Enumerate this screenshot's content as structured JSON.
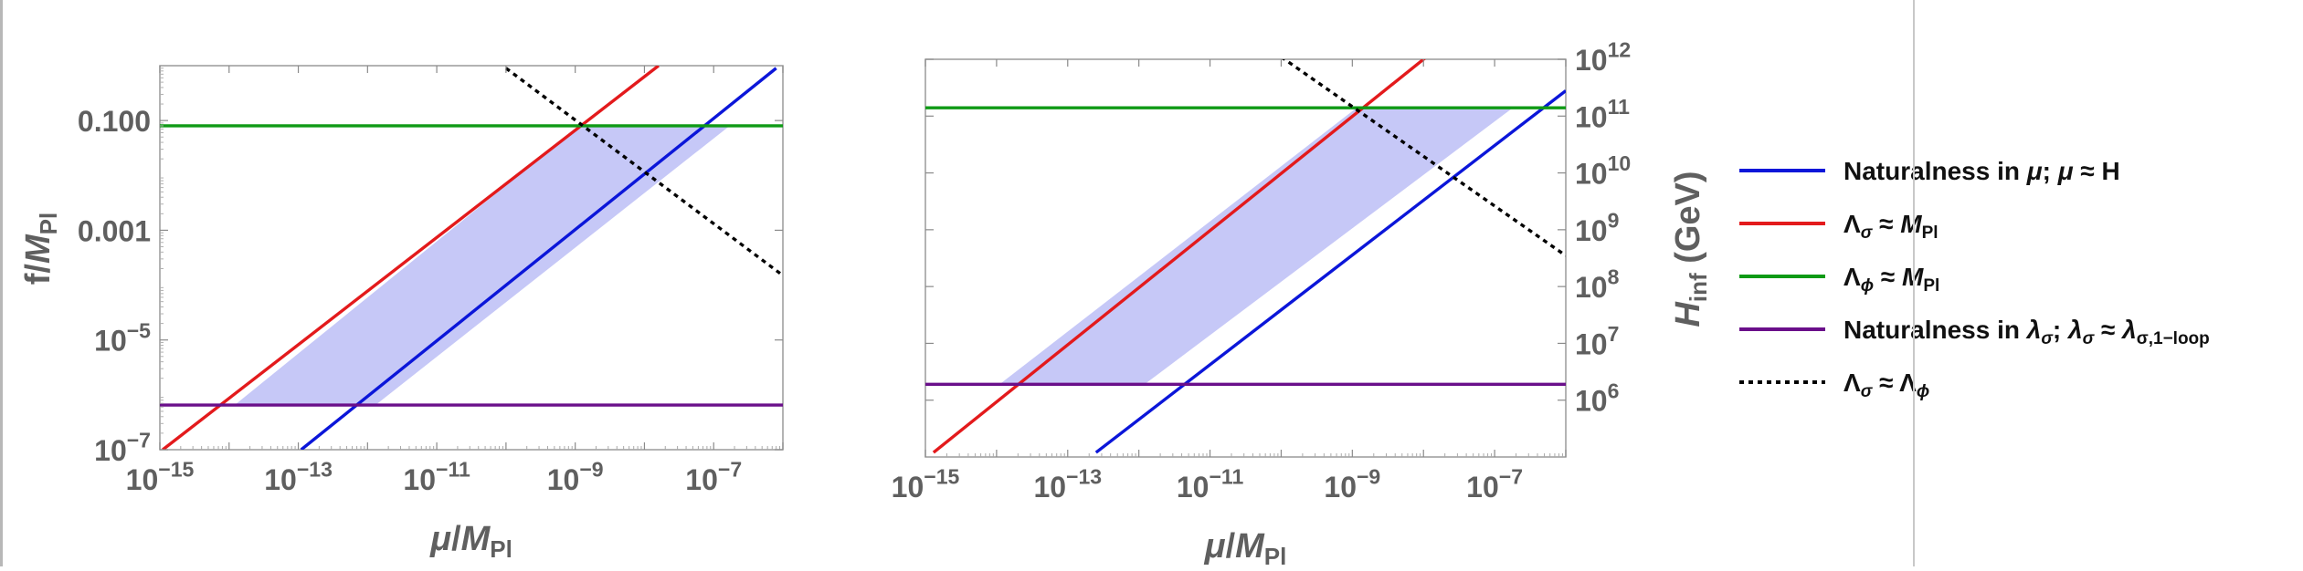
{
  "colors": {
    "blue": "#0b16d9",
    "red": "#e31a1c",
    "green": "#0f9a15",
    "purple": "#6a0f8a",
    "black": "#000000",
    "band": "#c6c8f7",
    "tick_text": "#5f5f5f"
  },
  "legend": {
    "items": [
      {
        "label": "Naturalness in μ; μ ≈ H",
        "color": "#0b16d9",
        "style": "solid"
      },
      {
        "label": "Λσ ≈ MPl",
        "color": "#e31a1c",
        "style": "solid"
      },
      {
        "label": "Λϕ ≈ MPl",
        "color": "#0f9a15",
        "style": "solid"
      },
      {
        "label": "Naturalness in λσ; λσ ≈ λσ,1−loop",
        "color": "#6a0f8a",
        "style": "solid"
      },
      {
        "label": "Λσ ≈ Λϕ",
        "color": "#000000",
        "style": "dotted"
      }
    ]
  },
  "chart_data": [
    {
      "type": "line",
      "xlabel": "μ/MPl",
      "ylabel": "f/MPl",
      "x_scale": "log",
      "y_scale": "log",
      "xlim": [
        1e-15,
        1e-06
      ],
      "ylim": [
        1e-07,
        1
      ],
      "x_ticks": [
        "10−15",
        "10−13",
        "10−11",
        "10−9",
        "10−7"
      ],
      "y_ticks": [
        "10−7",
        "10−5",
        "0.001",
        "0.100"
      ],
      "series": [
        {
          "color_key": "blue",
          "style": "solid",
          "x": [
            1.1e-13,
            8e-07
          ],
          "y": [
            1e-07,
            0.9
          ]
        },
        {
          "color_key": "red",
          "style": "solid",
          "x": [
            1.1e-15,
            1.6e-08
          ],
          "y": [
            1e-07,
            1.0
          ]
        },
        {
          "color_key": "green",
          "style": "solid",
          "x": [
            1e-15,
            1e-06
          ],
          "y": [
            0.08,
            0.08
          ]
        },
        {
          "color_key": "purple",
          "style": "solid",
          "x": [
            1e-15,
            1e-06
          ],
          "y": [
            6.5e-07,
            6.5e-07
          ]
        },
        {
          "color_key": "black",
          "style": "dotted",
          "x": [
            1e-10,
            1e-06
          ],
          "y": [
            0.9,
            0.00015
          ]
        }
      ],
      "shaded_region": {
        "color_key": "band",
        "x": [
          1.2e-14,
          1.15e-09,
          1.7e-07,
          1.3e-12
        ],
        "y": [
          6.5e-07,
          0.08,
          0.08,
          6.5e-07
        ]
      }
    },
    {
      "type": "line",
      "xlabel": "μ/MPl",
      "ylabel": "Hinf (GeV)",
      "x_scale": "log",
      "y_scale": "log",
      "xlim": [
        1e-15,
        1e-06
      ],
      "ylim": [
        100000.0,
        1000000000000.0
      ],
      "x_ticks": [
        "10−15",
        "10−13",
        "10−11",
        "10−9",
        "10−7"
      ],
      "y_ticks": [
        "106",
        "107",
        "108",
        "109",
        "1010",
        "1011",
        "1012"
      ],
      "series": [
        {
          "color_key": "blue",
          "style": "solid",
          "x": [
            2.5e-13,
            1e-06
          ],
          "y": [
            120000.0,
            280000000000.0
          ]
        },
        {
          "color_key": "red",
          "style": "solid",
          "x": [
            1.3e-15,
            1.2e-08
          ],
          "y": [
            120000.0,
            1200000000000.0
          ]
        },
        {
          "color_key": "green",
          "style": "solid",
          "x": [
            1e-15,
            1e-06
          ],
          "y": [
            140000000000.0,
            140000000000.0
          ]
        },
        {
          "color_key": "purple",
          "style": "solid",
          "x": [
            1e-15,
            1e-06
          ],
          "y": [
            1900000.0,
            1900000.0
          ]
        },
        {
          "color_key": "black",
          "style": "dotted",
          "x": [
            1e-10,
            1e-06
          ],
          "y": [
            1100000000000.0,
            350000000.0
          ]
        }
      ],
      "shaded_region": {
        "color_key": "band",
        "x": [
          1.1e-14,
          1.15e-09,
          1.8e-07,
          1.2e-12
        ],
        "y": [
          1900000.0,
          140000000000.0,
          140000000000.0,
          1900000.0
        ]
      }
    }
  ]
}
